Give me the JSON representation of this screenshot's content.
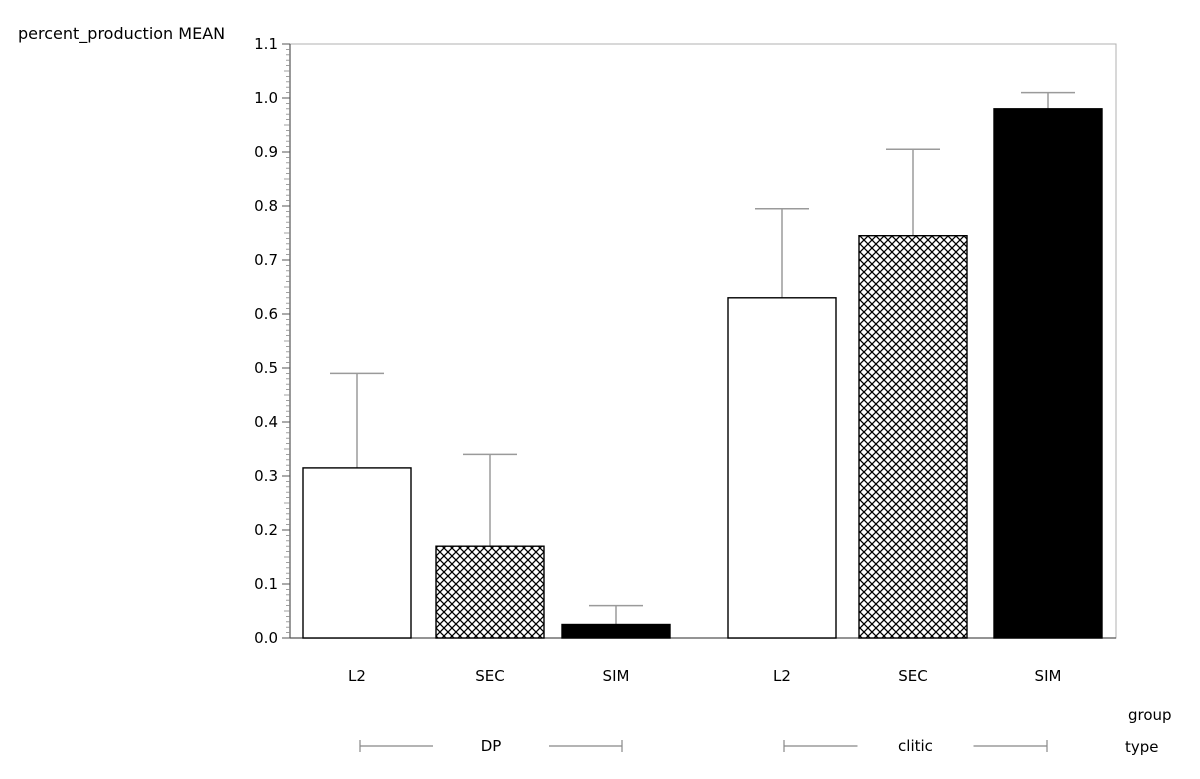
{
  "chart_data": {
    "type": "bar",
    "ylabel": "percent_production MEAN",
    "ylim": [
      0.0,
      1.1
    ],
    "yticks": [
      "0.0",
      "0.1",
      "0.2",
      "0.3",
      "0.4",
      "0.5",
      "0.6",
      "0.7",
      "0.8",
      "0.9",
      "1.0",
      "1.1"
    ],
    "group_axis_label": "group",
    "type_axis_label": "type",
    "types": [
      {
        "name": "DP",
        "bars": [
          {
            "group": "L2",
            "value": 0.315,
            "error_upper": 0.49,
            "fill": "white"
          },
          {
            "group": "SEC",
            "value": 0.17,
            "error_upper": 0.34,
            "fill": "crosshatch"
          },
          {
            "group": "SIM",
            "value": 0.025,
            "error_upper": 0.06,
            "fill": "black"
          }
        ]
      },
      {
        "name": "clitic",
        "bars": [
          {
            "group": "L2",
            "value": 0.63,
            "error_upper": 0.795,
            "fill": "white"
          },
          {
            "group": "SEC",
            "value": 0.745,
            "error_upper": 0.905,
            "fill": "crosshatch"
          },
          {
            "group": "SIM",
            "value": 0.98,
            "error_upper": 1.01,
            "fill": "black"
          }
        ]
      }
    ],
    "grid": false,
    "legend": "none"
  }
}
